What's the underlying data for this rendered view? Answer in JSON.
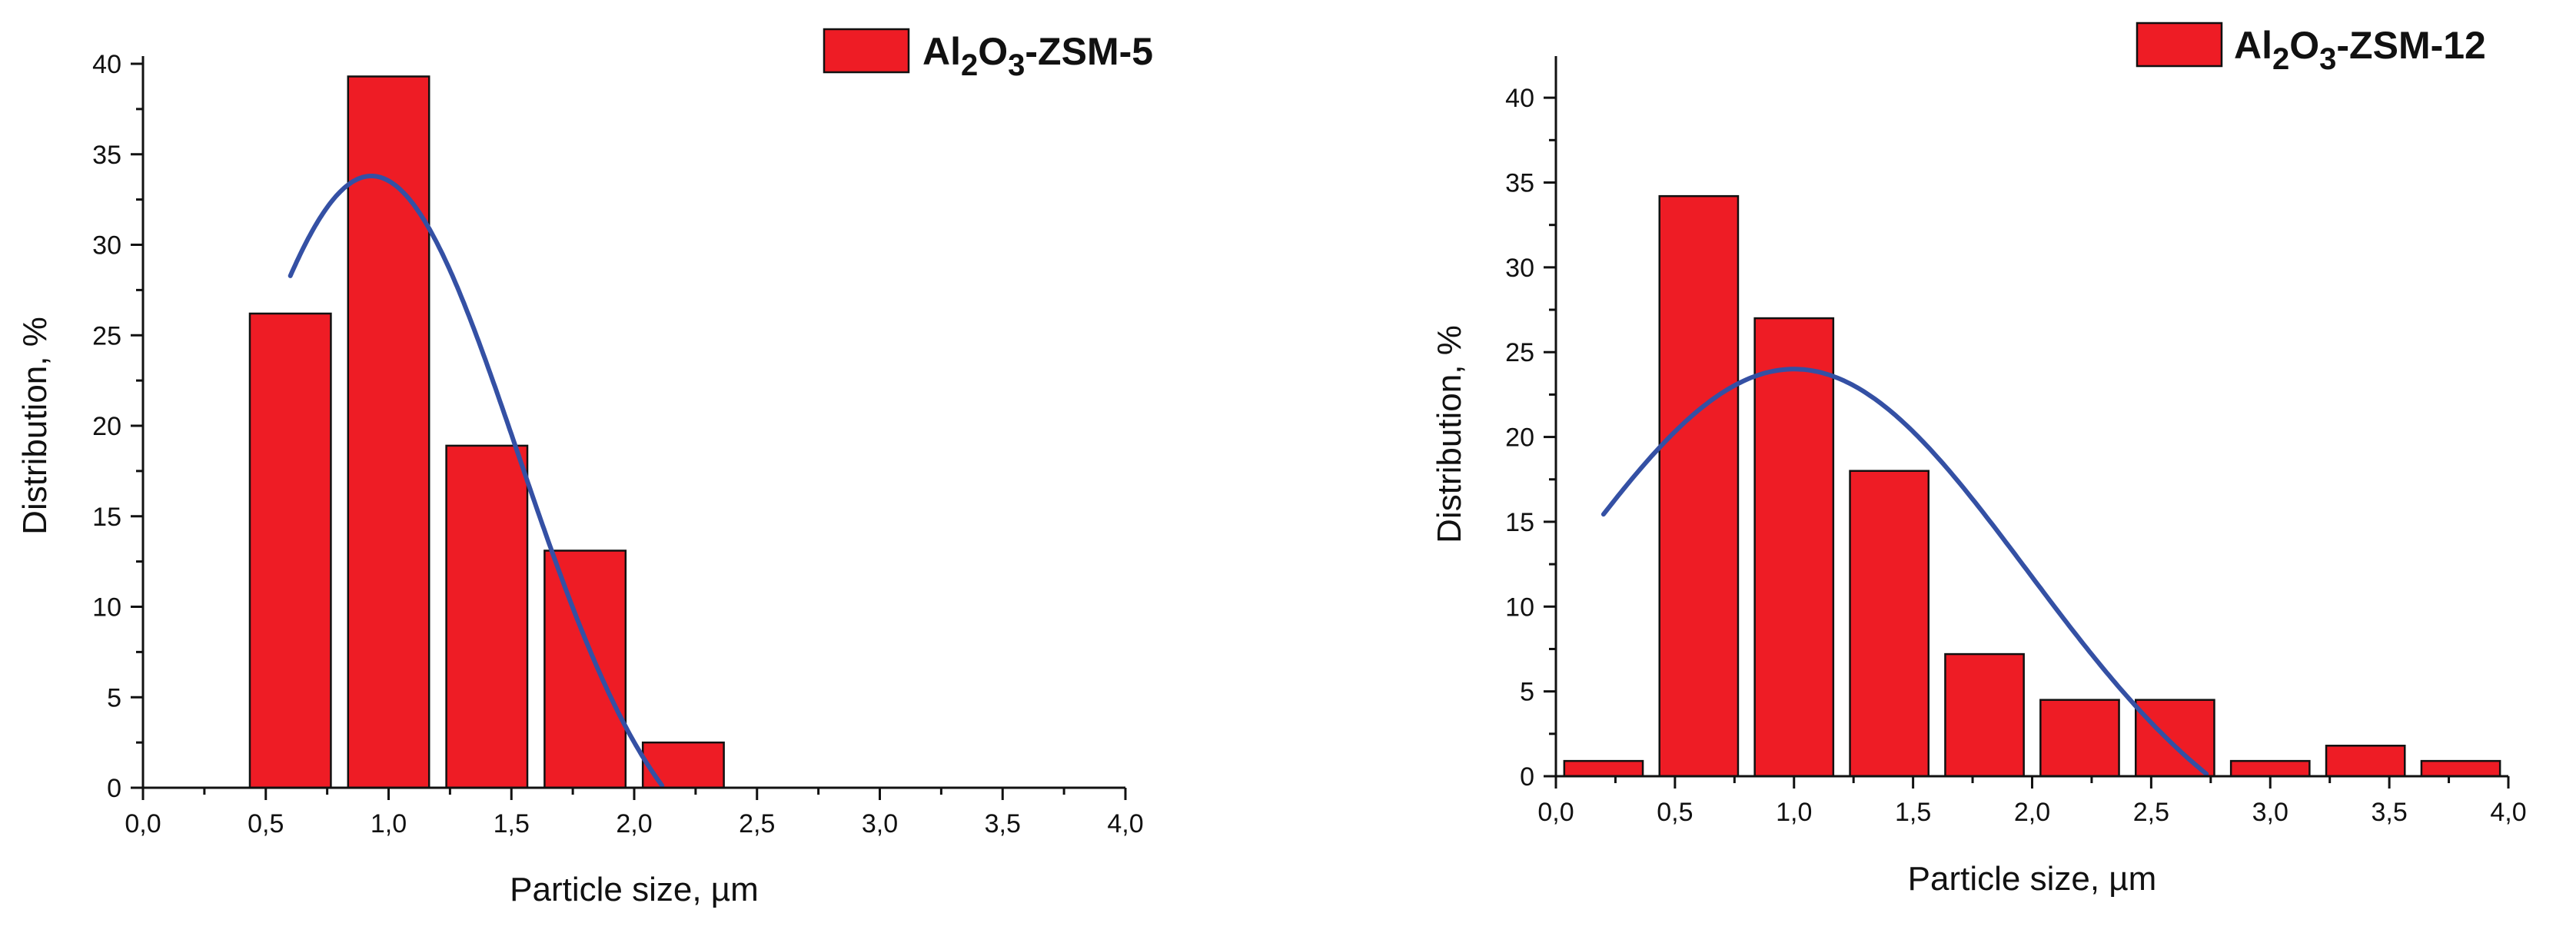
{
  "colors": {
    "bar": "#ee1c25",
    "fit_curve": "#3450a4",
    "axis": "#111111"
  },
  "chart_data": [
    {
      "type": "bar",
      "legend": {
        "label_main": "Al",
        "sub1": "2",
        "mid": "O",
        "sub2": "3",
        "suffix": "-ZSM-5",
        "placement": "top-right"
      },
      "xlabel": "Particle size, µm",
      "ylabel": "Distribution, %",
      "xlim": [
        0,
        4
      ],
      "ylim": [
        0,
        40
      ],
      "xticks": [
        "0,0",
        "0,5",
        "1,0",
        "1,5",
        "2,0",
        "2,5",
        "3,0",
        "3,5",
        "4,0"
      ],
      "yticks": [
        "0",
        "5",
        "10",
        "15",
        "20",
        "25",
        "30",
        "35",
        "40"
      ],
      "bar_width": 0.33,
      "x": [
        0.6,
        1.0,
        1.4,
        1.8,
        2.2
      ],
      "values": [
        26.2,
        39.3,
        18.9,
        13.1,
        2.5
      ],
      "fit_curve": {
        "type": "gaussian",
        "center": 0.93,
        "sigma": 0.6,
        "peak": 33.8,
        "offset": -5.5,
        "x_range": [
          0.6,
          2.6
        ]
      },
      "grid": false
    },
    {
      "type": "bar",
      "legend": {
        "label_main": "Al",
        "sub1": "2",
        "mid": "O",
        "sub2": "3",
        "suffix": "-ZSM-12",
        "placement": "top-right"
      },
      "xlabel": "Particle size, µm",
      "ylabel": "Distribution, %",
      "xlim": [
        0,
        4
      ],
      "ylim": [
        0,
        42
      ],
      "xticks": [
        "0,0",
        "0,5",
        "1,0",
        "1,5",
        "2,0",
        "2,5",
        "3,0",
        "3,5",
        "4,0"
      ],
      "yticks": [
        "0",
        "5",
        "10",
        "15",
        "20",
        "25",
        "30",
        "35",
        "40"
      ],
      "bar_width": 0.33,
      "x": [
        0.2,
        0.6,
        1.0,
        1.4,
        1.8,
        2.2,
        2.6,
        3.0,
        3.4,
        3.8
      ],
      "values": [
        0.9,
        34.2,
        27.0,
        18.0,
        7.2,
        4.5,
        4.5,
        0.9,
        1.8,
        0.9
      ],
      "fit_curve": {
        "type": "gaussian",
        "center": 1.0,
        "sigma": 0.98,
        "peak": 24.0,
        "offset": -6.2,
        "x_range": [
          0.2,
          3.8
        ]
      },
      "grid": false
    }
  ]
}
